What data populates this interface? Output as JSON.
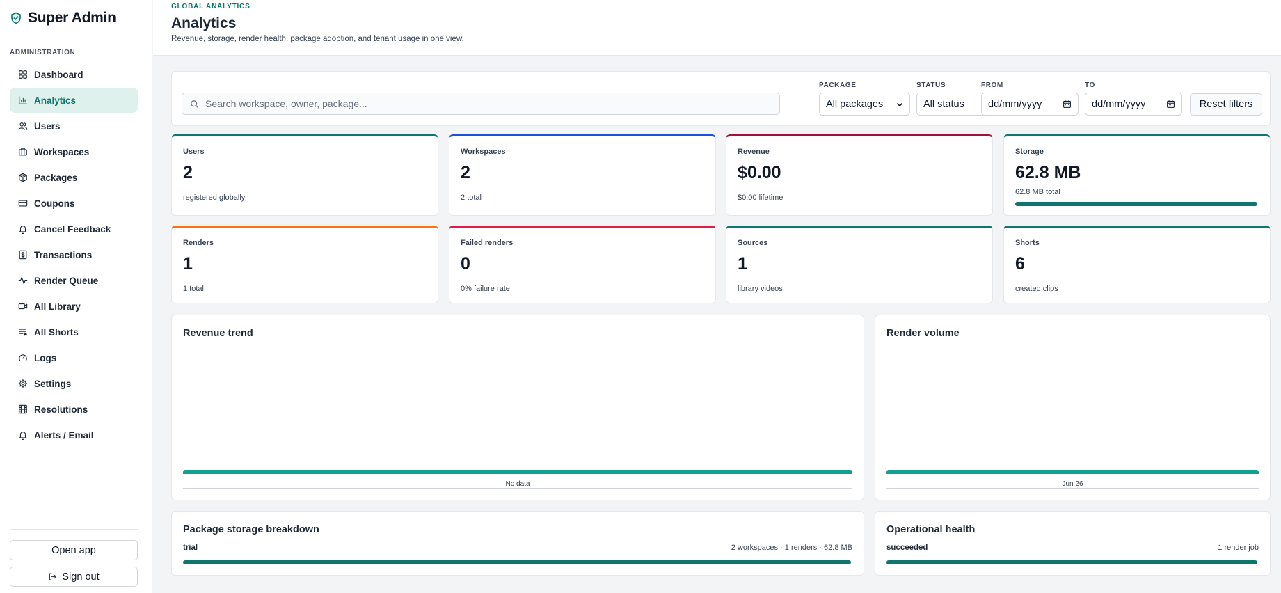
{
  "brand": {
    "title": "Super Admin",
    "logo_icon": "shield-check-icon"
  },
  "sidebar": {
    "section_label": "ADMINISTRATION",
    "items": [
      {
        "label": "Dashboard",
        "icon": "grid-icon",
        "active": false
      },
      {
        "label": "Analytics",
        "icon": "bar-chart-icon",
        "active": true
      },
      {
        "label": "Users",
        "icon": "users-icon",
        "active": false
      },
      {
        "label": "Workspaces",
        "icon": "briefcase-icon",
        "active": false
      },
      {
        "label": "Packages",
        "icon": "package-icon",
        "active": false
      },
      {
        "label": "Coupons",
        "icon": "card-icon",
        "active": false
      },
      {
        "label": "Cancel Feedback",
        "icon": "bell-icon",
        "active": false
      },
      {
        "label": "Transactions",
        "icon": "dollar-icon",
        "active": false
      },
      {
        "label": "Render Queue",
        "icon": "activity-icon",
        "active": false
      },
      {
        "label": "All Library",
        "icon": "video-icon",
        "active": false
      },
      {
        "label": "All Shorts",
        "icon": "list-play-icon",
        "active": false
      },
      {
        "label": "Logs",
        "icon": "gauge-icon",
        "active": false
      },
      {
        "label": "Settings",
        "icon": "gear-icon",
        "active": false
      },
      {
        "label": "Resolutions",
        "icon": "film-icon",
        "active": false
      },
      {
        "label": "Alerts / Email",
        "icon": "bell-icon",
        "active": false
      }
    ],
    "open_app_label": "Open app",
    "sign_out_label": "Sign out"
  },
  "header": {
    "eyebrow": "GLOBAL ANALYTICS",
    "title": "Analytics",
    "subtitle": "Revenue, storage, render health, package adoption, and tenant usage in one view."
  },
  "filters": {
    "search_placeholder": "Search workspace, owner, package...",
    "package": {
      "label": "PACKAGE",
      "value": "All packages"
    },
    "status": {
      "label": "STATUS",
      "value": "All status"
    },
    "from": {
      "label": "FROM",
      "value": "dd/mm/yyyy"
    },
    "to": {
      "label": "TO",
      "value": "dd/mm/yyyy"
    },
    "reset_label": "Reset filters"
  },
  "stats": [
    {
      "label": "Users",
      "value": "2",
      "sub": "registered globally",
      "color": "#0f766e"
    },
    {
      "label": "Workspaces",
      "value": "2",
      "sub": "2 total",
      "color": "#1d4ed8"
    },
    {
      "label": "Revenue",
      "value": "$0.00",
      "sub": "$0.00 lifetime",
      "color": "#9f1239"
    },
    {
      "label": "Storage",
      "value": "62.8 MB",
      "sub": "62.8 MB total",
      "color": "#0f766e",
      "progress": 1.0
    },
    {
      "label": "Renders",
      "value": "1",
      "sub": "1 total",
      "color": "#f97316"
    },
    {
      "label": "Failed renders",
      "value": "0",
      "sub": "0% failure rate",
      "color": "#e11d48"
    },
    {
      "label": "Sources",
      "value": "1",
      "sub": "library videos",
      "color": "#0f766e"
    },
    {
      "label": "Shorts",
      "value": "6",
      "sub": "created clips",
      "color": "#0f766e"
    }
  ],
  "panels": {
    "revenue_trend": {
      "title": "Revenue trend",
      "x_label": "No data"
    },
    "render_volume": {
      "title": "Render volume",
      "x_label": "Jun 26"
    },
    "package_storage": {
      "title": "Package storage breakdown",
      "row_name": "trial",
      "row_detail": "2 workspaces · 1 renders · 62.8 MB",
      "share": 1.0
    },
    "operational_health": {
      "title": "Operational health",
      "row_name": "succeeded",
      "row_detail": "1 render job",
      "share": 1.0
    }
  }
}
